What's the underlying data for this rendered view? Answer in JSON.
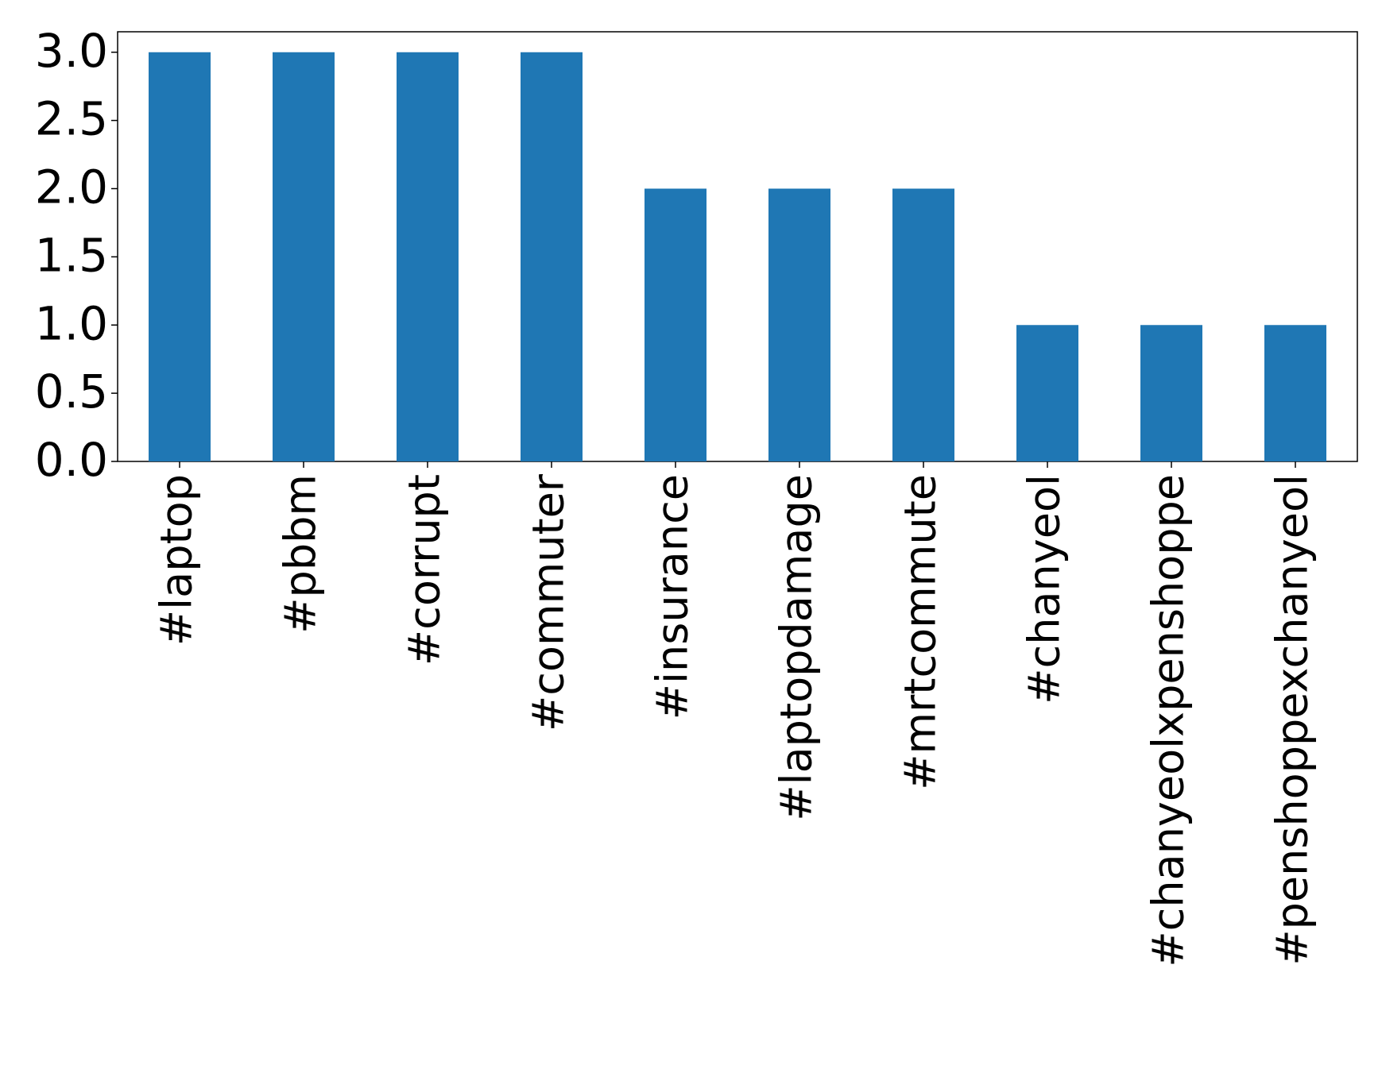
{
  "chart_data": {
    "type": "bar",
    "categories": [
      "#laptop",
      "#pbbm",
      "#corrupt",
      "#commuter",
      "#insurance",
      "#laptopdamage",
      "#mrtcommute",
      "#chanyeol",
      "#chanyeolxpenshoppe",
      "#penshoppexchanyeol"
    ],
    "values": [
      3,
      3,
      3,
      3,
      2,
      2,
      2,
      1,
      1,
      1
    ],
    "color": "#1f77b4",
    "ylim": [
      0,
      3.15
    ],
    "yticks": [
      {
        "value": 0,
        "label": "0.0"
      },
      {
        "value": 0.5,
        "label": "0.5"
      },
      {
        "value": 1,
        "label": "1.0"
      },
      {
        "value": 1.5,
        "label": "1.5"
      },
      {
        "value": 2,
        "label": "2.0"
      },
      {
        "value": 2.5,
        "label": "2.5"
      },
      {
        "value": 3,
        "label": "3.0"
      }
    ],
    "grid": false
  }
}
